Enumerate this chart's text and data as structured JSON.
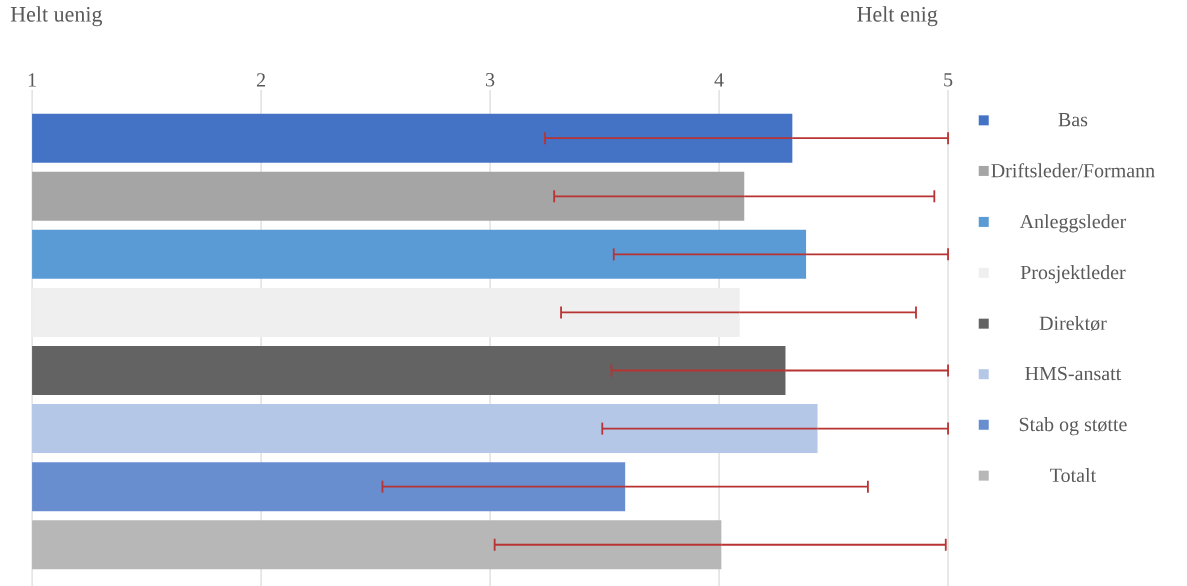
{
  "chart_data": {
    "type": "bar",
    "orientation": "horizontal",
    "categories": [
      null,
      null,
      null,
      null,
      null,
      null,
      null,
      null
    ],
    "xlim": [
      1,
      5
    ],
    "xticks": [
      1,
      2,
      3,
      4,
      5
    ],
    "grid": "x",
    "legend": "right",
    "annotations": [
      "Helt uenig",
      "Helt enig"
    ],
    "series": [
      {
        "name": "Bas",
        "color": "#4472c4",
        "values": [
          4.32,
          null,
          null,
          null,
          null,
          null,
          null,
          null
        ],
        "errors": [
          [
            3.24,
            5.0
          ],
          null,
          null,
          null,
          null,
          null,
          null,
          null
        ]
      },
      {
        "name": "Driftsleder/Formann",
        "color": "#a5a5a5",
        "values": [
          null,
          4.11,
          null,
          null,
          null,
          null,
          null,
          null
        ],
        "errors": [
          null,
          [
            3.28,
            4.94
          ],
          null,
          null,
          null,
          null,
          null,
          null
        ]
      },
      {
        "name": "Anleggsleder",
        "color": "#5b9bd5",
        "values": [
          null,
          null,
          4.38,
          null,
          null,
          null,
          null,
          null
        ],
        "errors": [
          null,
          null,
          [
            3.54,
            5.0
          ],
          null,
          null,
          null,
          null,
          null
        ]
      },
      {
        "name": "Prosjektleder",
        "color": "#efefef",
        "values": [
          null,
          null,
          null,
          4.09,
          null,
          null,
          null,
          null
        ],
        "errors": [
          null,
          null,
          null,
          [
            3.31,
            4.86
          ],
          null,
          null,
          null,
          null
        ]
      },
      {
        "name": "Direktør",
        "color": "#636363",
        "values": [
          null,
          null,
          null,
          null,
          4.29,
          null,
          null,
          null
        ],
        "errors": [
          null,
          null,
          null,
          null,
          [
            3.53,
            5.0
          ],
          null,
          null,
          null
        ]
      },
      {
        "name": "HMS-ansatt",
        "color": "#b4c7e7",
        "values": [
          null,
          null,
          null,
          null,
          null,
          4.43,
          null,
          null
        ],
        "errors": [
          null,
          null,
          null,
          null,
          null,
          [
            3.49,
            5.0
          ],
          null,
          null
        ]
      },
      {
        "name": "Stab og støtte",
        "color": "#698ed0",
        "values": [
          null,
          null,
          null,
          null,
          null,
          null,
          3.59,
          null
        ],
        "errors": [
          null,
          null,
          null,
          null,
          null,
          null,
          [
            2.53,
            4.65
          ],
          null
        ]
      },
      {
        "name": "Totalt",
        "color": "#b7b7b7",
        "values": [
          null,
          null,
          null,
          null,
          null,
          null,
          null,
          4.01
        ],
        "errors": [
          null,
          null,
          null,
          null,
          null,
          null,
          null,
          [
            3.02,
            4.99
          ]
        ]
      }
    ]
  }
}
